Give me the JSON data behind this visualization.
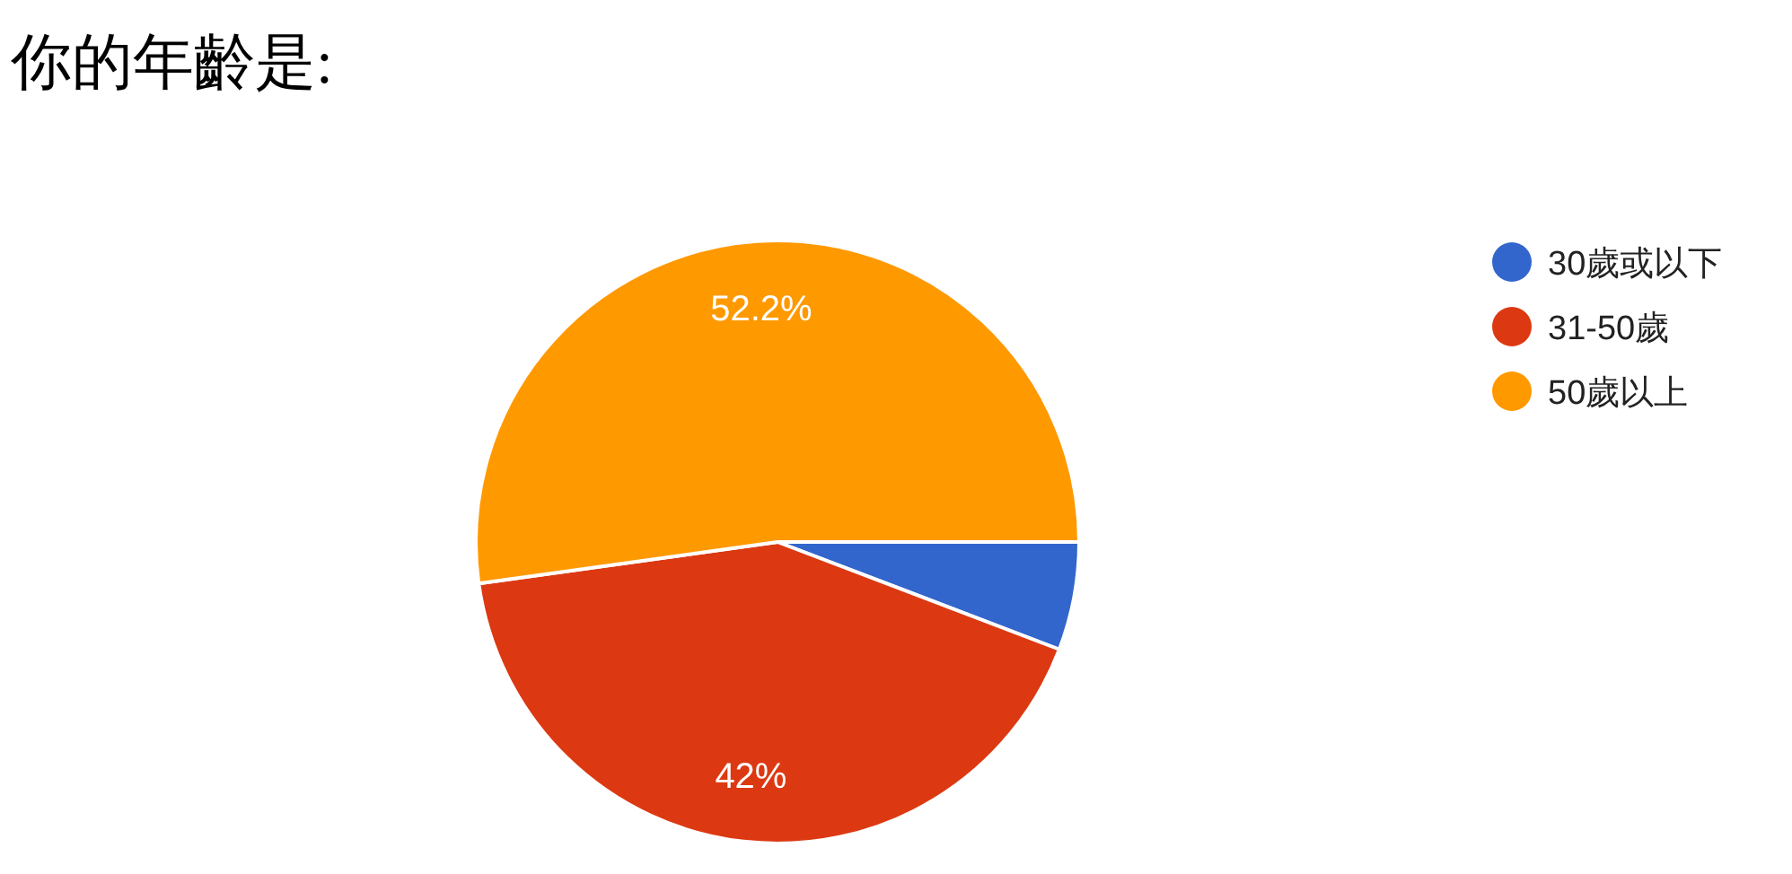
{
  "chart_data": {
    "type": "pie",
    "title": "你的年齡是:",
    "categories": [
      "30歲或以下",
      "31-50歲",
      "50歲以上"
    ],
    "values": [
      5.8,
      42,
      52.2
    ],
    "colors": [
      "#3366cc",
      "#dc3912",
      "#ff9900"
    ],
    "value_labels": [
      null,
      "42%",
      "52.2%"
    ],
    "legend": "right"
  }
}
